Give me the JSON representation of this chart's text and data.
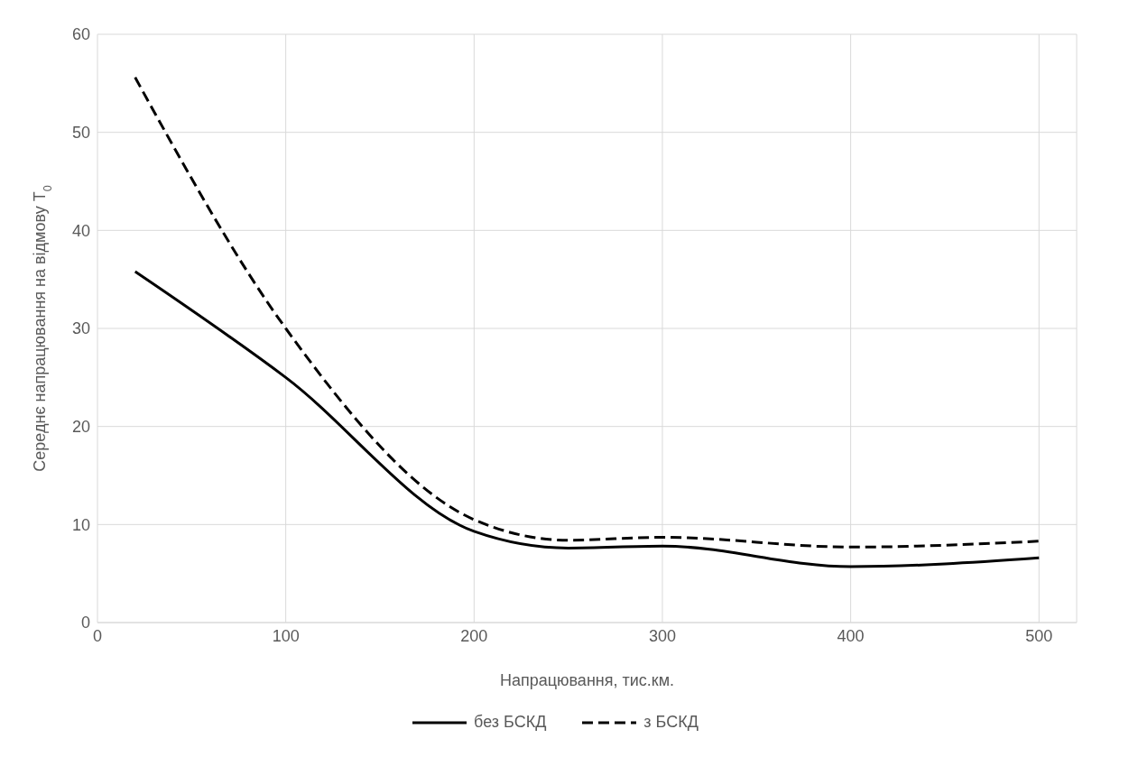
{
  "chart_data": {
    "type": "line",
    "xlabel": "Напрацювання, тис.км.",
    "ylabel": "Середнє напрацювання на відмову T$_{0}$",
    "x": [
      20,
      100,
      200,
      250,
      300,
      400,
      500
    ],
    "series": [
      {
        "name": "без БСКД",
        "color": "#000000",
        "line_style": "solid",
        "values": [
          35.8,
          25,
          9.3,
          7.6,
          7.8,
          5.7,
          6.6
        ]
      },
      {
        "name": "з БСКД",
        "color": "#000000",
        "line_style": "dashed",
        "values": [
          55.6,
          30,
          10.5,
          8.4,
          8.7,
          7.7,
          8.3
        ]
      }
    ],
    "xlim": [
      0,
      520
    ],
    "xticks": [
      0,
      100,
      200,
      300,
      400,
      500
    ],
    "ylim": [
      0,
      60
    ],
    "yticks": [
      0,
      10,
      20,
      30,
      40,
      50,
      60
    ],
    "grid": true,
    "legend": "bottom",
    "marker": "none"
  }
}
